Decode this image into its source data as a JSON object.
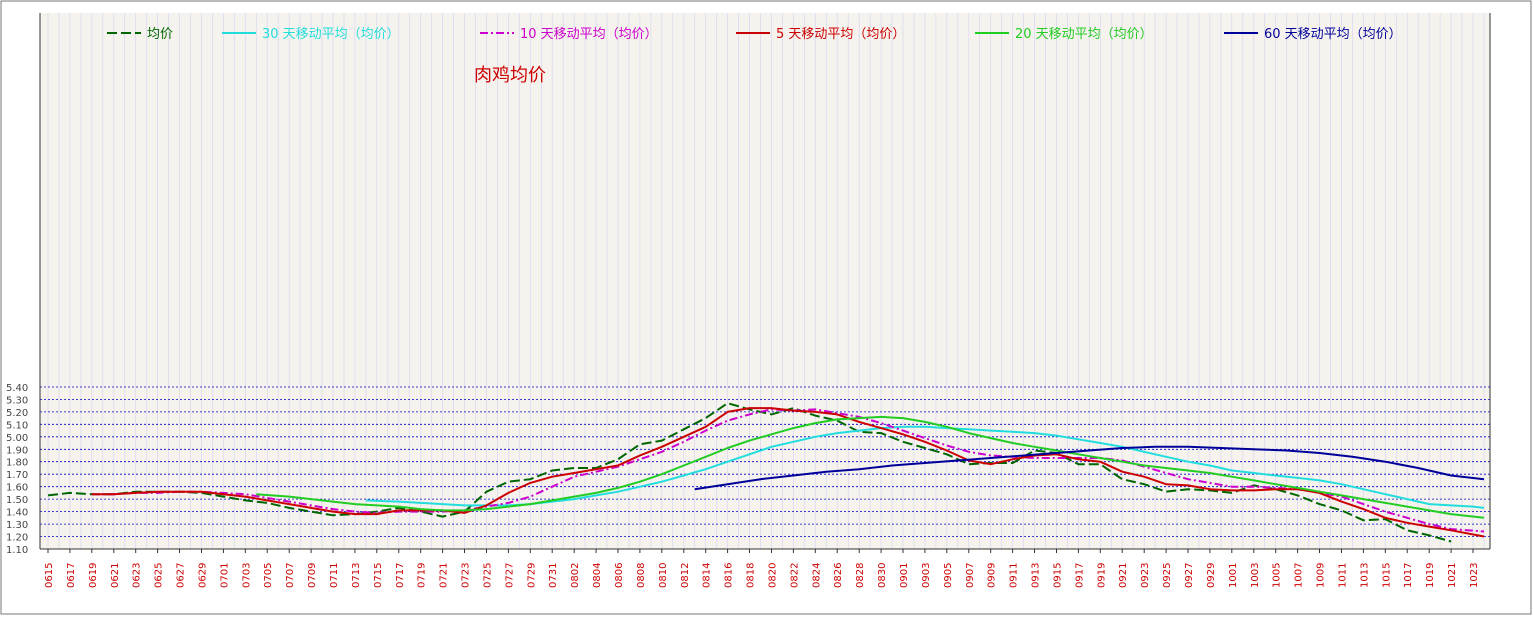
{
  "chart_data": {
    "type": "line",
    "title": "肉鸡均价",
    "xlabel": "",
    "ylabel": "",
    "ylim": [
      1.1,
      5.4
    ],
    "y_ticks": [
      "1.10",
      "1.20",
      "1.30",
      "1.40",
      "1.50",
      "1.60",
      "1.70",
      "1.80",
      "1.90",
      "5.00",
      "5.10",
      "5.20",
      "5.30",
      "5.40"
    ],
    "x_ticks": [
      "0615",
      "0617",
      "0619",
      "0621",
      "0623",
      "0625",
      "0627",
      "0629",
      "0701",
      "0703",
      "0705",
      "0707",
      "0709",
      "0711",
      "0713",
      "0715",
      "0717",
      "0719",
      "0721",
      "0723",
      "0725",
      "0727",
      "0729",
      "0731",
      "0802",
      "0804",
      "0806",
      "0808",
      "0810",
      "0812",
      "0814",
      "0816",
      "0818",
      "0820",
      "0822",
      "0824",
      "0826",
      "0828",
      "0830",
      "0901",
      "0903",
      "0905",
      "0907",
      "0909",
      "0911",
      "0913",
      "0915",
      "0917",
      "0919",
      "0921",
      "0923",
      "0925",
      "0927",
      "0929",
      "1001",
      "1003",
      "1005",
      "1007",
      "1009",
      "1011",
      "1013",
      "1015",
      "1017",
      "1019",
      "1021",
      "1023"
    ],
    "grid": true,
    "legend_position": "top",
    "colors": {
      "均价": "#006600",
      "30天": "#22dddd",
      "10天": "#cc00cc",
      "5天": "#cc0000",
      "20天": "#22cc22",
      "60天": "#000099",
      "title": "#cc0000",
      "tick_label_x": "#cc0000",
      "grid": "#0000cc"
    },
    "series": [
      {
        "name": "均价",
        "label": "均价",
        "color": "#006600",
        "dash": "10,4",
        "width": 2,
        "x": [
          "0615",
          "0617",
          "0619",
          "0621",
          "0623",
          "0625",
          "0627",
          "0629",
          "0701",
          "0703",
          "0705",
          "0707",
          "0709",
          "0711",
          "0713",
          "0715",
          "0717",
          "0719",
          "0721",
          "0723",
          "0725",
          "0727",
          "0729",
          "0731",
          "0802",
          "0804",
          "0806",
          "0808",
          "0810",
          "0812",
          "0814",
          "0816",
          "0818",
          "0820",
          "0822",
          "0824",
          "0826",
          "0828",
          "0830",
          "0901",
          "0903",
          "0905",
          "0907",
          "0909",
          "0911",
          "0913",
          "0915",
          "0917",
          "0919",
          "0921",
          "0923",
          "0925",
          "0927",
          "0929",
          "1001",
          "1003",
          "1005",
          "1007",
          "1009",
          "1011",
          "1013",
          "1015",
          "1017",
          "1019",
          "1021"
        ],
        "y": [
          1.53,
          1.55,
          1.54,
          1.54,
          1.56,
          1.56,
          1.56,
          1.55,
          1.52,
          1.49,
          1.47,
          1.43,
          1.4,
          1.37,
          1.38,
          1.4,
          1.43,
          1.4,
          1.36,
          1.4,
          1.56,
          1.64,
          1.66,
          1.73,
          1.75,
          1.75,
          1.82,
          1.94,
          1.97,
          2.06,
          2.15,
          2.27,
          2.22,
          2.18,
          2.23,
          2.17,
          2.13,
          2.04,
          2.03,
          1.96,
          1.91,
          1.86,
          1.78,
          1.79,
          1.79,
          1.89,
          1.87,
          1.78,
          1.78,
          1.66,
          1.62,
          1.56,
          1.58,
          1.57,
          1.55,
          1.61,
          1.58,
          1.53,
          1.46,
          1.41,
          1.33,
          1.34,
          1.25,
          1.21,
          1.16
        ]
      },
      {
        "name": "30天",
        "label": "30 天移动平均（均价）",
        "color": "#22dddd",
        "dash": "",
        "width": 2,
        "x": [
          "0714",
          "0717",
          "0719",
          "0721",
          "0723",
          "0725",
          "0727",
          "0729",
          "0731",
          "0802",
          "0804",
          "0806",
          "0808",
          "0810",
          "0812",
          "0814",
          "0816",
          "0818",
          "0820",
          "0822",
          "0824",
          "0826",
          "0828",
          "0830",
          "0901",
          "0903",
          "0905",
          "0907",
          "0909",
          "0911",
          "0913",
          "0915",
          "0917",
          "0919",
          "0921",
          "0923",
          "0925",
          "0927",
          "0929",
          "1001",
          "1003",
          "1005",
          "1007",
          "1009",
          "1011",
          "1013",
          "1015",
          "1017",
          "1019",
          "1021",
          "1023",
          "1024"
        ],
        "y": [
          1.49,
          1.48,
          1.47,
          1.46,
          1.45,
          1.45,
          1.45,
          1.46,
          1.48,
          1.5,
          1.53,
          1.56,
          1.6,
          1.64,
          1.69,
          1.74,
          1.8,
          1.86,
          1.92,
          1.96,
          2.0,
          2.03,
          2.05,
          2.07,
          2.08,
          2.08,
          2.07,
          2.06,
          2.05,
          2.04,
          2.03,
          2.01,
          1.98,
          1.95,
          1.92,
          1.88,
          1.84,
          1.8,
          1.77,
          1.73,
          1.71,
          1.69,
          1.67,
          1.65,
          1.62,
          1.58,
          1.54,
          1.5,
          1.46,
          1.45,
          1.44,
          1.43
        ]
      },
      {
        "name": "10天",
        "label": "10 天移动平均（均价）",
        "color": "#cc00cc",
        "dash": "8,3,2,3",
        "width": 2,
        "x": [
          "0619",
          "0621",
          "0623",
          "0625",
          "0627",
          "0629",
          "0701",
          "0703",
          "0705",
          "0707",
          "0709",
          "0711",
          "0713",
          "0715",
          "0717",
          "0719",
          "0721",
          "0723",
          "0725",
          "0727",
          "0729",
          "0731",
          "0802",
          "0804",
          "0806",
          "0808",
          "0810",
          "0812",
          "0814",
          "0816",
          "0818",
          "0820",
          "0822",
          "0824",
          "0826",
          "0828",
          "0830",
          "0901",
          "0903",
          "0905",
          "0907",
          "0909",
          "0911",
          "0913",
          "0915",
          "0917",
          "0919",
          "0921",
          "0923",
          "0925",
          "0927",
          "0929",
          "1001",
          "1003",
          "1005",
          "1007",
          "1009",
          "1011",
          "1013",
          "1015",
          "1017",
          "1019",
          "1021",
          "1024"
        ],
        "y": [
          1.54,
          1.54,
          1.55,
          1.55,
          1.56,
          1.56,
          1.55,
          1.54,
          1.51,
          1.48,
          1.45,
          1.42,
          1.4,
          1.39,
          1.4,
          1.4,
          1.4,
          1.41,
          1.44,
          1.47,
          1.52,
          1.6,
          1.68,
          1.72,
          1.76,
          1.82,
          1.88,
          1.96,
          2.05,
          2.13,
          2.18,
          2.22,
          2.21,
          2.22,
          2.19,
          2.16,
          2.11,
          2.05,
          1.99,
          1.93,
          1.88,
          1.85,
          1.84,
          1.83,
          1.83,
          1.83,
          1.83,
          1.81,
          1.76,
          1.71,
          1.66,
          1.63,
          1.6,
          1.6,
          1.59,
          1.58,
          1.55,
          1.52,
          1.46,
          1.4,
          1.35,
          1.3,
          1.26,
          1.24
        ]
      },
      {
        "name": "5天",
        "label": "5 天移动平均（均价）",
        "color": "#cc0000",
        "dash": "",
        "width": 2,
        "x": [
          "0619",
          "0621",
          "0623",
          "0625",
          "0627",
          "0629",
          "0701",
          "0703",
          "0705",
          "0707",
          "0709",
          "0711",
          "0713",
          "0715",
          "0717",
          "0719",
          "0721",
          "0723",
          "0725",
          "0727",
          "0729",
          "0731",
          "0802",
          "0804",
          "0806",
          "0808",
          "0810",
          "0812",
          "0814",
          "0816",
          "0818",
          "0820",
          "0822",
          "0824",
          "0826",
          "0828",
          "0830",
          "0901",
          "0903",
          "0905",
          "0907",
          "0909",
          "0911",
          "0913",
          "0915",
          "0917",
          "0919",
          "0921",
          "0923",
          "0925",
          "0927",
          "0929",
          "1001",
          "1003",
          "1005",
          "1007",
          "1009",
          "1011",
          "1013",
          "1015",
          "1017",
          "1019",
          "1021",
          "1024"
        ],
        "y": [
          1.54,
          1.54,
          1.55,
          1.56,
          1.56,
          1.56,
          1.54,
          1.52,
          1.49,
          1.46,
          1.43,
          1.4,
          1.38,
          1.38,
          1.41,
          1.41,
          1.41,
          1.39,
          1.45,
          1.55,
          1.63,
          1.68,
          1.71,
          1.74,
          1.77,
          1.85,
          1.92,
          2.0,
          2.08,
          2.2,
          2.23,
          2.23,
          2.21,
          2.2,
          2.18,
          2.12,
          2.07,
          2.02,
          1.96,
          1.89,
          1.81,
          1.78,
          1.82,
          1.85,
          1.86,
          1.82,
          1.8,
          1.72,
          1.68,
          1.62,
          1.61,
          1.58,
          1.57,
          1.57,
          1.58,
          1.58,
          1.55,
          1.48,
          1.42,
          1.35,
          1.31,
          1.28,
          1.25,
          1.2
        ]
      },
      {
        "name": "20天",
        "label": "20 天移动平均（均价）",
        "color": "#22cc22",
        "dash": "",
        "width": 2,
        "x": [
          "0704",
          "0707",
          "0709",
          "0711",
          "0713",
          "0715",
          "0717",
          "0719",
          "0721",
          "0723",
          "0725",
          "0727",
          "0729",
          "0731",
          "0802",
          "0804",
          "0806",
          "0808",
          "0810",
          "0812",
          "0814",
          "0816",
          "0818",
          "0820",
          "0822",
          "0824",
          "0826",
          "0828",
          "0830",
          "0901",
          "0903",
          "0905",
          "0907",
          "0909",
          "0911",
          "0913",
          "0915",
          "0917",
          "0919",
          "0921",
          "0923",
          "0925",
          "0927",
          "0929",
          "1001",
          "1003",
          "1005",
          "1007",
          "1009",
          "1011",
          "1013",
          "1015",
          "1017",
          "1019",
          "1021",
          "1024"
        ],
        "y": [
          1.54,
          1.52,
          1.5,
          1.48,
          1.46,
          1.45,
          1.44,
          1.42,
          1.41,
          1.41,
          1.42,
          1.44,
          1.46,
          1.49,
          1.52,
          1.55,
          1.59,
          1.64,
          1.7,
          1.77,
          1.84,
          1.91,
          1.97,
          2.02,
          2.07,
          2.11,
          2.14,
          2.15,
          2.16,
          2.15,
          2.12,
          2.08,
          2.03,
          1.99,
          1.95,
          1.92,
          1.89,
          1.86,
          1.83,
          1.8,
          1.77,
          1.75,
          1.73,
          1.71,
          1.68,
          1.65,
          1.62,
          1.59,
          1.56,
          1.53,
          1.5,
          1.47,
          1.44,
          1.41,
          1.38,
          1.35
        ]
      },
      {
        "name": "60天",
        "label": "60 天移动平均（均价）",
        "color": "#000099",
        "dash": "",
        "width": 2,
        "x": [
          "0813",
          "0816",
          "0819",
          "0822",
          "0825",
          "0828",
          "0831",
          "0903",
          "0906",
          "0909",
          "0912",
          "0915",
          "0918",
          "0921",
          "0924",
          "0927",
          "0930",
          "1003",
          "1006",
          "1009",
          "1012",
          "1015",
          "1018",
          "1021",
          "1024"
        ],
        "y": [
          1.58,
          1.62,
          1.66,
          1.69,
          1.72,
          1.74,
          1.77,
          1.79,
          1.81,
          1.83,
          1.85,
          1.87,
          1.89,
          1.91,
          1.92,
          1.92,
          1.91,
          1.9,
          1.89,
          1.87,
          1.84,
          1.8,
          1.75,
          1.69,
          1.66
        ]
      }
    ]
  }
}
